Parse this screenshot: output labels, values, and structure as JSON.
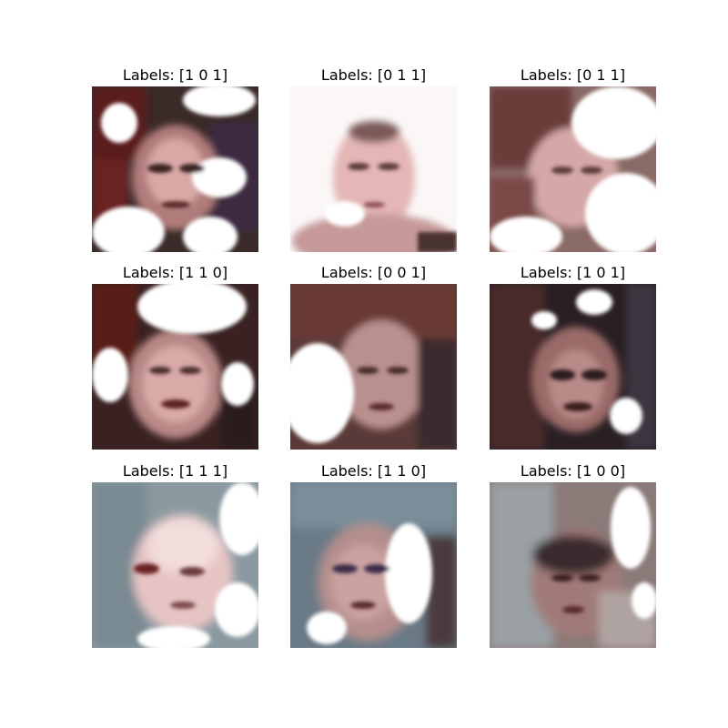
{
  "grid": {
    "cells": [
      {
        "title": "Labels: [1 0 1]"
      },
      {
        "title": "Labels: [0 1 1]"
      },
      {
        "title": "Labels: [0 1 1]"
      },
      {
        "title": "Labels: [1 1 0]"
      },
      {
        "title": "Labels: [0 0 1]"
      },
      {
        "title": "Labels: [1 0 1]"
      },
      {
        "title": "Labels: [1 1 1]"
      },
      {
        "title": "Labels: [1 1 0]"
      },
      {
        "title": "Labels: [1 0 0]"
      }
    ]
  }
}
